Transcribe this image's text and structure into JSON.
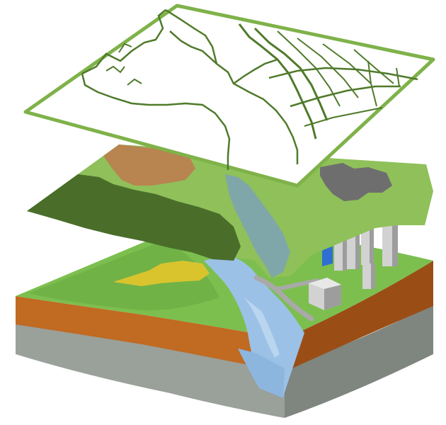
{
  "diagram": {
    "layers": [
      "vector-layer",
      "raster-layer",
      "terrain-block"
    ]
  },
  "colors": {
    "background": "#ffffff",
    "vector_outline": "#7fb24a",
    "vector_line": "#4f7a2a",
    "raster_light": "#8fc05a",
    "raster_dark": "#4a6e2a",
    "raster_brown": "#b8844f",
    "raster_gray": "#6e6e6e",
    "water_raster": "#7fa7a9",
    "grass": "#7cbf4f",
    "grass_shade": "#6aa840",
    "soil": "#c06a22",
    "soil_dark": "#9a4e16",
    "rock": "#9aa09a",
    "rock_dark": "#7f857f",
    "river": "#9cc1e6",
    "river_light": "#c7ddf2",
    "building": "#c9c9c9",
    "building_shade": "#9d9d9d",
    "yellow_field": "#d9c42e",
    "road": "#a9a9a9",
    "blue_roof": "#2e6fd1"
  }
}
